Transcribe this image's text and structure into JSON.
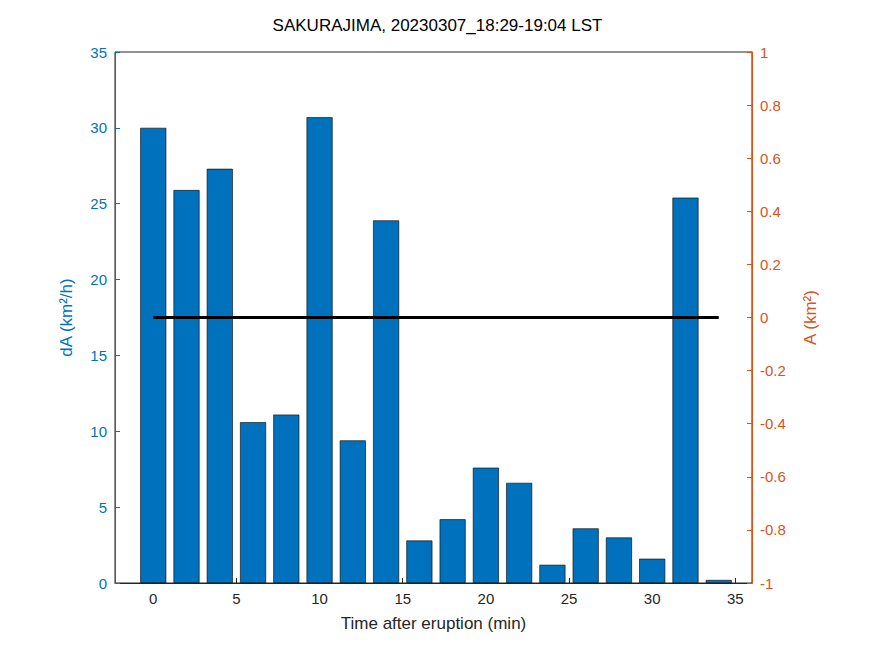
{
  "chart_data": {
    "type": "bar",
    "title": "SAKURAJIMA, 20230307_18:29-19:04 LST",
    "x_label": "Time after eruption (min)",
    "y_label": "dA (km²/h)",
    "y2_label": "A (km²)",
    "x": [
      0,
      2,
      4,
      6,
      8,
      10,
      12,
      14,
      16,
      18,
      20,
      22,
      24,
      26,
      28,
      30,
      32,
      34
    ],
    "series": [
      {
        "type": "bar",
        "color": "#0072bd",
        "values": [
          30.0,
          25.9,
          27.3,
          10.6,
          11.1,
          30.7,
          9.4,
          23.9,
          2.8,
          4.2,
          7.6,
          6.6,
          1.2,
          3.6,
          3.0,
          1.6,
          25.4,
          0.2
        ]
      },
      {
        "type": "line",
        "axis": "y2",
        "color": "#000000",
        "line_style": "solid",
        "values": [
          0,
          0,
          0,
          0,
          0,
          0,
          0,
          0,
          0,
          0,
          0,
          0,
          0,
          0,
          0,
          0,
          0,
          0
        ]
      }
    ],
    "xlim": [
      -2.3,
      36
    ],
    "xticks": [
      0,
      5,
      10,
      15,
      20,
      25,
      30,
      35
    ],
    "ylim": [
      0,
      35
    ],
    "yticks": [
      0,
      5,
      10,
      15,
      20,
      25,
      30,
      35
    ],
    "y2lim": [
      -1,
      1
    ],
    "y2ticks": [
      -1,
      -0.8,
      -0.6,
      -0.4,
      -0.2,
      0,
      0.2,
      0.4,
      0.6,
      0.8,
      1
    ],
    "grid": false
  }
}
